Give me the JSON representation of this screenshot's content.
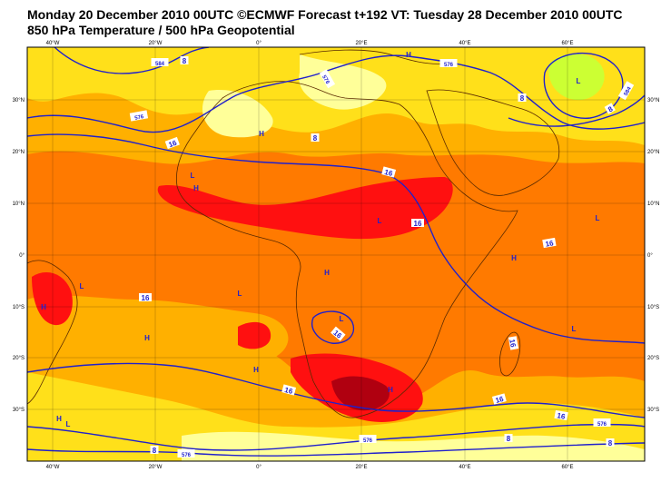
{
  "header": {
    "line1": "Monday 20 December 2010 00UTC ©ECMWF Forecast t+192 VT: Tuesday 28 December 2010 00UTC",
    "line2": "850 hPa Temperature / 500 hPa Geopotential"
  },
  "axes": {
    "lon_ticks": [
      "40°W",
      "20°W",
      "0°",
      "20°E",
      "40°E",
      "60°E"
    ],
    "lat_left": [
      "30°N",
      "20°N",
      "10°N",
      "0°",
      "10°S",
      "20°S",
      "30°S"
    ],
    "lat_right": [
      "30°N",
      "20°N",
      "10°N",
      "0°",
      "10°S",
      "20°S",
      "30°S"
    ]
  },
  "colors": {
    "pale_yellow": "#ffff99",
    "yellow": "#ffe01a",
    "light_orange": "#ffb000",
    "orange": "#ff7a00",
    "red": "#ff1010",
    "dark_red": "#b00010",
    "green": "#ccff33",
    "contour": "#2020cc",
    "coast": "#5a2a00"
  },
  "contour_labels": {
    "t_16": "16",
    "t_8": "8",
    "z_576": "576",
    "z_584": "584"
  },
  "pressure_marks": {
    "high": "H",
    "low": "L"
  }
}
